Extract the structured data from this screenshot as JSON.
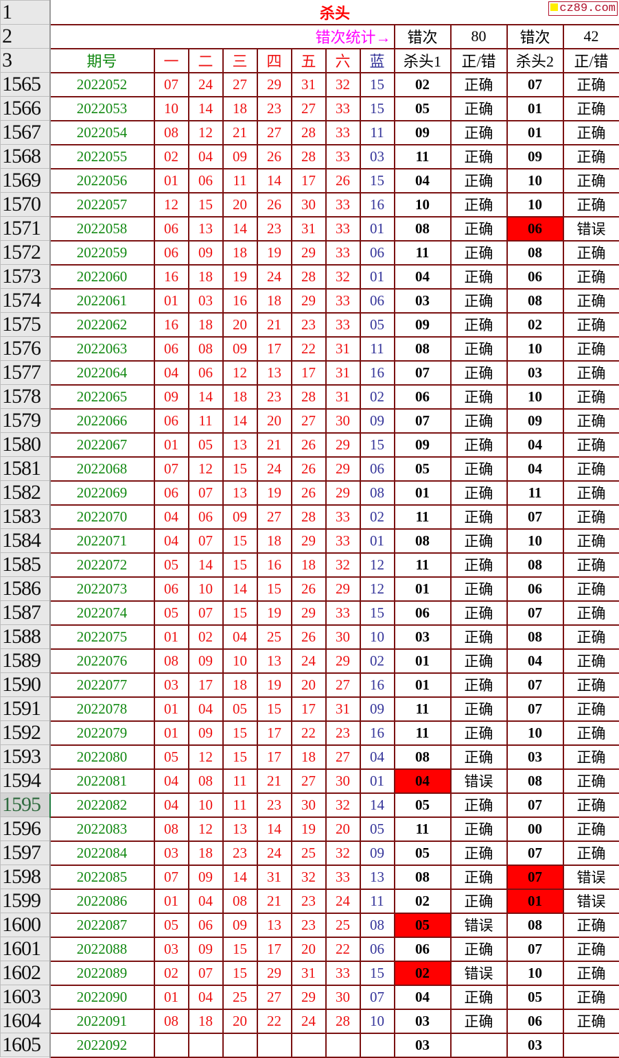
{
  "title": "杀头",
  "watermark": "cz89.com",
  "stats": {
    "label": "错次统计→",
    "err1_label": "错次",
    "err1_count": "80",
    "err2_label": "错次",
    "err2_count": "42"
  },
  "header_row_numbers": [
    "1",
    "2",
    "3"
  ],
  "columns": [
    "期号",
    "一",
    "二",
    "三",
    "四",
    "五",
    "六",
    "蓝",
    "杀头1",
    "正/错",
    "杀头2",
    "正/错"
  ],
  "selected_row": "1595",
  "colors": {
    "border": "#7a1010",
    "issue": "#118811",
    "red_balls": "#ee1111",
    "blue_ball": "#333399",
    "error_fill": "#ff0000",
    "stat_label": "#ff00ff"
  },
  "rows": [
    [
      "1565",
      "2022052",
      "07",
      "24",
      "27",
      "29",
      "31",
      "32",
      "15",
      "02",
      "正确",
      "07",
      "正确"
    ],
    [
      "1566",
      "2022053",
      "10",
      "14",
      "18",
      "23",
      "27",
      "33",
      "15",
      "05",
      "正确",
      "01",
      "正确"
    ],
    [
      "1567",
      "2022054",
      "08",
      "12",
      "21",
      "27",
      "28",
      "33",
      "11",
      "09",
      "正确",
      "01",
      "正确"
    ],
    [
      "1568",
      "2022055",
      "02",
      "04",
      "09",
      "26",
      "28",
      "33",
      "03",
      "11",
      "正确",
      "09",
      "正确"
    ],
    [
      "1569",
      "2022056",
      "01",
      "06",
      "11",
      "14",
      "17",
      "26",
      "15",
      "04",
      "正确",
      "10",
      "正确"
    ],
    [
      "1570",
      "2022057",
      "12",
      "15",
      "20",
      "26",
      "30",
      "33",
      "16",
      "10",
      "正确",
      "10",
      "正确"
    ],
    [
      "1571",
      "2022058",
      "06",
      "13",
      "14",
      "23",
      "31",
      "33",
      "01",
      "08",
      "正确",
      "06",
      "错误"
    ],
    [
      "1572",
      "2022059",
      "06",
      "09",
      "18",
      "19",
      "29",
      "33",
      "06",
      "11",
      "正确",
      "08",
      "正确"
    ],
    [
      "1573",
      "2022060",
      "16",
      "18",
      "19",
      "24",
      "28",
      "32",
      "01",
      "04",
      "正确",
      "06",
      "正确"
    ],
    [
      "1574",
      "2022061",
      "01",
      "03",
      "16",
      "18",
      "29",
      "33",
      "06",
      "03",
      "正确",
      "08",
      "正确"
    ],
    [
      "1575",
      "2022062",
      "16",
      "18",
      "20",
      "21",
      "23",
      "33",
      "05",
      "09",
      "正确",
      "02",
      "正确"
    ],
    [
      "1576",
      "2022063",
      "06",
      "08",
      "09",
      "17",
      "22",
      "31",
      "11",
      "08",
      "正确",
      "10",
      "正确"
    ],
    [
      "1577",
      "2022064",
      "04",
      "06",
      "12",
      "13",
      "17",
      "31",
      "16",
      "07",
      "正确",
      "03",
      "正确"
    ],
    [
      "1578",
      "2022065",
      "09",
      "14",
      "18",
      "23",
      "28",
      "31",
      "02",
      "06",
      "正确",
      "10",
      "正确"
    ],
    [
      "1579",
      "2022066",
      "06",
      "11",
      "14",
      "20",
      "27",
      "30",
      "09",
      "07",
      "正确",
      "09",
      "正确"
    ],
    [
      "1580",
      "2022067",
      "01",
      "05",
      "13",
      "21",
      "26",
      "29",
      "15",
      "09",
      "正确",
      "04",
      "正确"
    ],
    [
      "1581",
      "2022068",
      "07",
      "12",
      "15",
      "24",
      "26",
      "29",
      "06",
      "05",
      "正确",
      "04",
      "正确"
    ],
    [
      "1582",
      "2022069",
      "06",
      "07",
      "13",
      "19",
      "26",
      "29",
      "08",
      "01",
      "正确",
      "11",
      "正确"
    ],
    [
      "1583",
      "2022070",
      "04",
      "06",
      "09",
      "27",
      "28",
      "33",
      "02",
      "11",
      "正确",
      "07",
      "正确"
    ],
    [
      "1584",
      "2022071",
      "04",
      "07",
      "15",
      "18",
      "29",
      "33",
      "01",
      "08",
      "正确",
      "10",
      "正确"
    ],
    [
      "1585",
      "2022072",
      "05",
      "14",
      "15",
      "16",
      "18",
      "32",
      "12",
      "11",
      "正确",
      "08",
      "正确"
    ],
    [
      "1586",
      "2022073",
      "06",
      "10",
      "14",
      "15",
      "26",
      "29",
      "12",
      "01",
      "正确",
      "06",
      "正确"
    ],
    [
      "1587",
      "2022074",
      "05",
      "07",
      "15",
      "19",
      "29",
      "33",
      "15",
      "06",
      "正确",
      "07",
      "正确"
    ],
    [
      "1588",
      "2022075",
      "01",
      "02",
      "04",
      "25",
      "26",
      "30",
      "10",
      "03",
      "正确",
      "08",
      "正确"
    ],
    [
      "1589",
      "2022076",
      "08",
      "09",
      "10",
      "13",
      "24",
      "29",
      "02",
      "01",
      "正确",
      "04",
      "正确"
    ],
    [
      "1590",
      "2022077",
      "03",
      "17",
      "18",
      "19",
      "20",
      "27",
      "16",
      "01",
      "正确",
      "07",
      "正确"
    ],
    [
      "1591",
      "2022078",
      "01",
      "04",
      "05",
      "15",
      "17",
      "31",
      "09",
      "11",
      "正确",
      "07",
      "正确"
    ],
    [
      "1592",
      "2022079",
      "01",
      "09",
      "15",
      "17",
      "22",
      "23",
      "16",
      "11",
      "正确",
      "10",
      "正确"
    ],
    [
      "1593",
      "2022080",
      "05",
      "12",
      "15",
      "17",
      "18",
      "27",
      "04",
      "08",
      "正确",
      "03",
      "正确"
    ],
    [
      "1594",
      "2022081",
      "04",
      "08",
      "11",
      "21",
      "27",
      "30",
      "01",
      "04",
      "错误",
      "08",
      "正确"
    ],
    [
      "1595",
      "2022082",
      "04",
      "10",
      "11",
      "23",
      "30",
      "32",
      "14",
      "05",
      "正确",
      "07",
      "正确"
    ],
    [
      "1596",
      "2022083",
      "08",
      "12",
      "13",
      "14",
      "19",
      "20",
      "05",
      "11",
      "正确",
      "00",
      "正确"
    ],
    [
      "1597",
      "2022084",
      "03",
      "18",
      "23",
      "24",
      "25",
      "32",
      "09",
      "05",
      "正确",
      "07",
      "正确"
    ],
    [
      "1598",
      "2022085",
      "07",
      "09",
      "14",
      "31",
      "32",
      "33",
      "13",
      "08",
      "正确",
      "07",
      "错误"
    ],
    [
      "1599",
      "2022086",
      "01",
      "04",
      "08",
      "21",
      "23",
      "24",
      "11",
      "02",
      "正确",
      "01",
      "错误"
    ],
    [
      "1600",
      "2022087",
      "05",
      "06",
      "09",
      "13",
      "23",
      "25",
      "08",
      "05",
      "错误",
      "08",
      "正确"
    ],
    [
      "1601",
      "2022088",
      "03",
      "09",
      "15",
      "17",
      "20",
      "22",
      "06",
      "06",
      "正确",
      "07",
      "正确"
    ],
    [
      "1602",
      "2022089",
      "02",
      "07",
      "15",
      "29",
      "31",
      "33",
      "15",
      "02",
      "错误",
      "10",
      "正确"
    ],
    [
      "1603",
      "2022090",
      "01",
      "04",
      "25",
      "27",
      "29",
      "30",
      "07",
      "04",
      "正确",
      "05",
      "正确"
    ],
    [
      "1604",
      "2022091",
      "08",
      "18",
      "20",
      "22",
      "24",
      "28",
      "10",
      "03",
      "正确",
      "06",
      "正确"
    ],
    [
      "1605",
      "2022092",
      "",
      "",
      "",
      "",
      "",
      "",
      "",
      "03",
      "",
      "03",
      ""
    ]
  ]
}
